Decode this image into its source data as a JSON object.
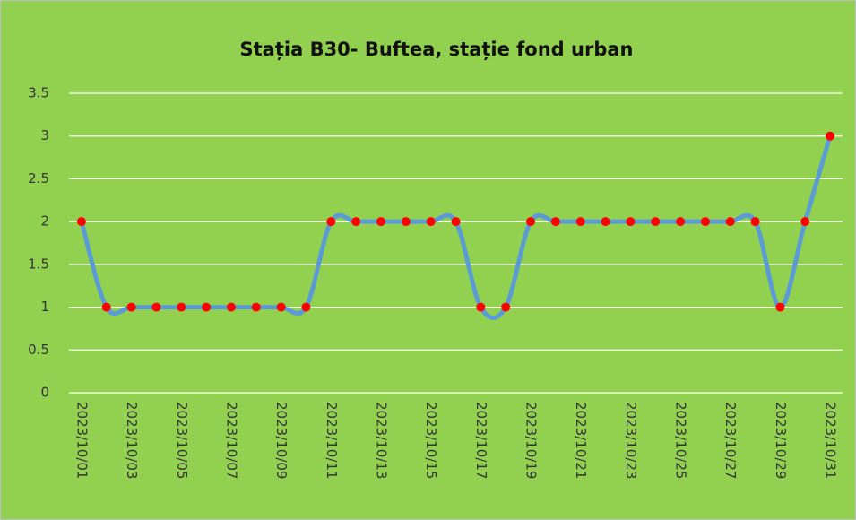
{
  "chart_data": {
    "type": "line",
    "title": "Stația B30- Buftea, stație fond urban",
    "categories": [
      "2023/10/01",
      null,
      "2023/10/03",
      null,
      "2023/10/05",
      null,
      "2023/10/07",
      null,
      "2023/10/09",
      null,
      "2023/10/11",
      null,
      "2023/10/13",
      null,
      "2023/10/15",
      null,
      "2023/10/17",
      null,
      "2023/10/19",
      null,
      "2023/10/21",
      null,
      "2023/10/23",
      null,
      "2023/10/25",
      null,
      "2023/10/27",
      null,
      "2023/10/29",
      null,
      "2023/10/31"
    ],
    "series": [
      {
        "color": "#5b9bd5",
        "marker_color": "#ff0000",
        "values": [
          2,
          1,
          1,
          1,
          1,
          1,
          1,
          1,
          1,
          1,
          2,
          2,
          2,
          2,
          2,
          2,
          1,
          1,
          2,
          2,
          2,
          2,
          2,
          2,
          2,
          2,
          2,
          2,
          1,
          2,
          3
        ]
      }
    ],
    "ylim": [
      0,
      3.5
    ],
    "yticks": [
      0,
      0.5,
      1,
      1.5,
      2,
      2.5,
      3,
      3.5
    ],
    "grid": true,
    "background": "#92d050"
  }
}
